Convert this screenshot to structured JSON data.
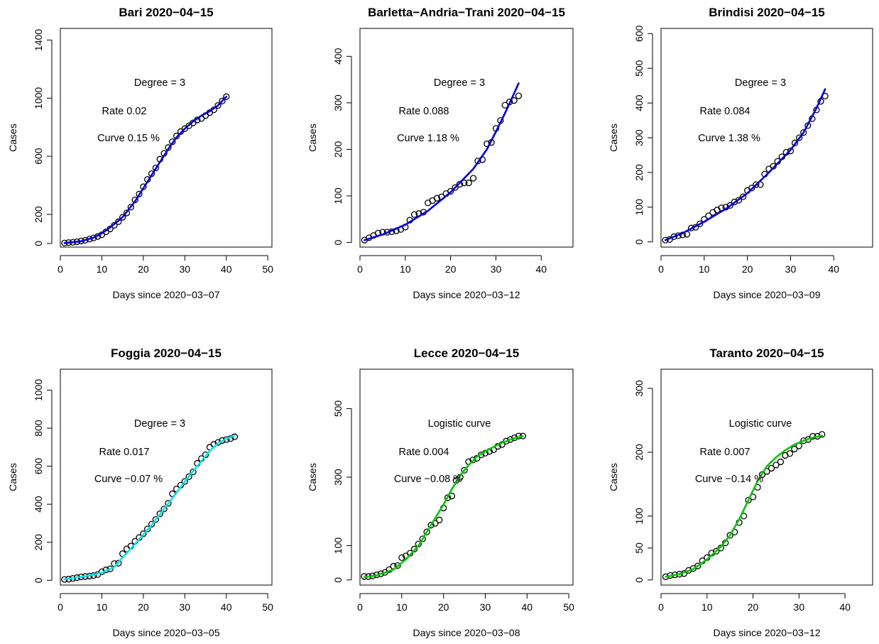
{
  "chart_data": [
    {
      "type": "scatter",
      "title": "Bari 2020−04−15",
      "xlabel": "Days since 2020−03−07",
      "ylabel": "Cases",
      "xlim": [
        0,
        51
      ],
      "ylim": [
        -25,
        1480
      ],
      "xticks": [
        0,
        10,
        20,
        30,
        40,
        50
      ],
      "yticks": [
        0,
        200,
        600,
        1000,
        1400
      ],
      "annotations": [
        "Degree = 3",
        "Rate 0.02",
        "Curve 0.15 %"
      ],
      "fit_color": "#0000ee",
      "points": [
        [
          1,
          3
        ],
        [
          2,
          6
        ],
        [
          3,
          8
        ],
        [
          4,
          12
        ],
        [
          5,
          17
        ],
        [
          6,
          22
        ],
        [
          7,
          30
        ],
        [
          8,
          38
        ],
        [
          9,
          48
        ],
        [
          10,
          60
        ],
        [
          11,
          80
        ],
        [
          12,
          100
        ],
        [
          13,
          125
        ],
        [
          14,
          150
        ],
        [
          15,
          180
        ],
        [
          16,
          210
        ],
        [
          17,
          250
        ],
        [
          18,
          300
        ],
        [
          19,
          340
        ],
        [
          20,
          390
        ],
        [
          21,
          440
        ],
        [
          22,
          480
        ],
        [
          23,
          520
        ],
        [
          24,
          580
        ],
        [
          25,
          620
        ],
        [
          26,
          660
        ],
        [
          27,
          700
        ],
        [
          28,
          740
        ],
        [
          29,
          770
        ],
        [
          30,
          790
        ],
        [
          31,
          810
        ],
        [
          32,
          830
        ],
        [
          33,
          850
        ],
        [
          34,
          860
        ],
        [
          35,
          880
        ],
        [
          36,
          900
        ],
        [
          37,
          920
        ],
        [
          38,
          950
        ],
        [
          39,
          980
        ],
        [
          40,
          1010
        ]
      ],
      "fit": [
        [
          1,
          3
        ],
        [
          5,
          15
        ],
        [
          8,
          40
        ],
        [
          10,
          70
        ],
        [
          12,
          110
        ],
        [
          15,
          180
        ],
        [
          18,
          290
        ],
        [
          20,
          380
        ],
        [
          22,
          470
        ],
        [
          24,
          560
        ],
        [
          26,
          650
        ],
        [
          28,
          730
        ],
        [
          30,
          790
        ],
        [
          32,
          840
        ],
        [
          34,
          880
        ],
        [
          36,
          910
        ],
        [
          38,
          950
        ],
        [
          40,
          1010
        ]
      ]
    },
    {
      "type": "scatter",
      "title": "Barletta−Andria−Trani 2020−04−15",
      "xlabel": "Days since 2020−03−12",
      "ylabel": "Cases",
      "xlim": [
        0,
        47
      ],
      "ylim": [
        -10,
        460
      ],
      "xticks": [
        0,
        10,
        20,
        30,
        40
      ],
      "yticks": [
        0,
        100,
        200,
        300,
        400
      ],
      "annotations": [
        "Degree = 3",
        "Rate 0.088",
        "Curve 1.18 %"
      ],
      "fit_color": "#0000ee",
      "points": [
        [
          1,
          5
        ],
        [
          2,
          10
        ],
        [
          3,
          15
        ],
        [
          4,
          20
        ],
        [
          5,
          22
        ],
        [
          6,
          22
        ],
        [
          7,
          23
        ],
        [
          8,
          25
        ],
        [
          9,
          28
        ],
        [
          10,
          33
        ],
        [
          11,
          48
        ],
        [
          12,
          60
        ],
        [
          13,
          62
        ],
        [
          14,
          65
        ],
        [
          15,
          85
        ],
        [
          16,
          90
        ],
        [
          17,
          95
        ],
        [
          18,
          98
        ],
        [
          19,
          105
        ],
        [
          20,
          110
        ],
        [
          21,
          118
        ],
        [
          22,
          125
        ],
        [
          23,
          128
        ],
        [
          24,
          128
        ],
        [
          25,
          138
        ],
        [
          26,
          175
        ],
        [
          27,
          178
        ],
        [
          28,
          212
        ],
        [
          29,
          215
        ],
        [
          30,
          245
        ],
        [
          31,
          262
        ],
        [
          32,
          295
        ],
        [
          33,
          302
        ],
        [
          34,
          305
        ],
        [
          35,
          315
        ]
      ],
      "fit": [
        [
          1,
          5
        ],
        [
          5,
          17
        ],
        [
          10,
          38
        ],
        [
          15,
          68
        ],
        [
          20,
          108
        ],
        [
          25,
          158
        ],
        [
          28,
          200
        ],
        [
          30,
          238
        ],
        [
          32,
          278
        ],
        [
          34,
          320
        ],
        [
          35,
          342
        ]
      ]
    },
    {
      "type": "scatter",
      "title": "Brindisi 2020−04−15",
      "xlabel": "Days since 2020−03−09",
      "ylabel": "Cases",
      "xlim": [
        0,
        49
      ],
      "ylim": [
        -15,
        615
      ],
      "xticks": [
        0,
        10,
        20,
        30,
        40
      ],
      "yticks": [
        0,
        100,
        200,
        300,
        400,
        500,
        600
      ],
      "annotations": [
        "Degree = 3",
        "Rate 0.084",
        "Curve 1.38 %"
      ],
      "fit_color": "#0000ee",
      "points": [
        [
          1,
          5
        ],
        [
          2,
          7
        ],
        [
          3,
          15
        ],
        [
          4,
          18
        ],
        [
          5,
          20
        ],
        [
          6,
          22
        ],
        [
          7,
          40
        ],
        [
          8,
          42
        ],
        [
          9,
          52
        ],
        [
          10,
          65
        ],
        [
          11,
          75
        ],
        [
          12,
          85
        ],
        [
          13,
          92
        ],
        [
          14,
          98
        ],
        [
          15,
          100
        ],
        [
          16,
          105
        ],
        [
          17,
          115
        ],
        [
          18,
          120
        ],
        [
          19,
          130
        ],
        [
          20,
          148
        ],
        [
          21,
          155
        ],
        [
          22,
          165
        ],
        [
          23,
          165
        ],
        [
          24,
          195
        ],
        [
          25,
          210
        ],
        [
          26,
          218
        ],
        [
          27,
          232
        ],
        [
          28,
          245
        ],
        [
          29,
          258
        ],
        [
          30,
          262
        ],
        [
          31,
          285
        ],
        [
          32,
          300
        ],
        [
          33,
          315
        ],
        [
          34,
          335
        ],
        [
          35,
          355
        ],
        [
          36,
          380
        ],
        [
          37,
          405
        ],
        [
          38,
          420
        ]
      ],
      "fit": [
        [
          1,
          5
        ],
        [
          5,
          25
        ],
        [
          10,
          58
        ],
        [
          15,
          95
        ],
        [
          20,
          140
        ],
        [
          25,
          200
        ],
        [
          30,
          265
        ],
        [
          33,
          315
        ],
        [
          36,
          385
        ],
        [
          38,
          440
        ]
      ]
    },
    {
      "type": "scatter",
      "title": "Foggia 2020−04−15",
      "xlabel": "Days since 2020−03−05",
      "ylabel": "Cases",
      "xlim": [
        0,
        51
      ],
      "ylim": [
        -25,
        1110
      ],
      "xticks": [
        0,
        10,
        20,
        30,
        40,
        50
      ],
      "yticks": [
        0,
        200,
        400,
        600,
        800,
        1000
      ],
      "annotations": [
        "Degree = 3",
        "Rate 0.017",
        "Curve −0.07 %"
      ],
      "fit_color": "#00e5ee",
      "points": [
        [
          1,
          5
        ],
        [
          2,
          6
        ],
        [
          3,
          10
        ],
        [
          4,
          14
        ],
        [
          5,
          18
        ],
        [
          6,
          20
        ],
        [
          7,
          22
        ],
        [
          8,
          25
        ],
        [
          9,
          30
        ],
        [
          10,
          45
        ],
        [
          11,
          55
        ],
        [
          12,
          60
        ],
        [
          13,
          88
        ],
        [
          14,
          90
        ],
        [
          15,
          140
        ],
        [
          16,
          165
        ],
        [
          17,
          180
        ],
        [
          18,
          205
        ],
        [
          19,
          225
        ],
        [
          20,
          245
        ],
        [
          21,
          270
        ],
        [
          22,
          295
        ],
        [
          23,
          320
        ],
        [
          24,
          350
        ],
        [
          25,
          375
        ],
        [
          26,
          405
        ],
        [
          27,
          455
        ],
        [
          28,
          480
        ],
        [
          29,
          500
        ],
        [
          30,
          520
        ],
        [
          31,
          545
        ],
        [
          32,
          570
        ],
        [
          33,
          615
        ],
        [
          34,
          640
        ],
        [
          35,
          660
        ],
        [
          36,
          700
        ],
        [
          37,
          715
        ],
        [
          38,
          725
        ],
        [
          39,
          735
        ],
        [
          40,
          740
        ],
        [
          41,
          745
        ],
        [
          42,
          755
        ]
      ],
      "fit": [
        [
          1,
          5
        ],
        [
          5,
          18
        ],
        [
          10,
          40
        ],
        [
          13,
          70
        ],
        [
          15,
          120
        ],
        [
          18,
          190
        ],
        [
          20,
          240
        ],
        [
          22,
          290
        ],
        [
          25,
          375
        ],
        [
          28,
          460
        ],
        [
          30,
          520
        ],
        [
          33,
          600
        ],
        [
          36,
          680
        ],
        [
          38,
          720
        ],
        [
          40,
          745
        ],
        [
          42,
          760
        ]
      ]
    },
    {
      "type": "scatter",
      "title": "Lecce 2020−04−15",
      "xlabel": "Days since 2020−03−08",
      "ylabel": "Cases",
      "xlim": [
        0,
        51
      ],
      "ylim": [
        -15,
        615
      ],
      "xticks": [
        0,
        10,
        20,
        30,
        40,
        50
      ],
      "yticks": [
        0,
        100,
        300,
        500
      ],
      "annotations": [
        "Logistic curve",
        "Rate 0.004",
        "Curve −0.08 %"
      ],
      "fit_color": "#00cc00",
      "points": [
        [
          1,
          10
        ],
        [
          2,
          10
        ],
        [
          3,
          12
        ],
        [
          4,
          15
        ],
        [
          5,
          18
        ],
        [
          6,
          22
        ],
        [
          7,
          30
        ],
        [
          8,
          40
        ],
        [
          9,
          42
        ],
        [
          10,
          65
        ],
        [
          11,
          70
        ],
        [
          12,
          78
        ],
        [
          13,
          90
        ],
        [
          14,
          105
        ],
        [
          15,
          120
        ],
        [
          16,
          140
        ],
        [
          17,
          160
        ],
        [
          18,
          165
        ],
        [
          19,
          175
        ],
        [
          20,
          210
        ],
        [
          21,
          240
        ],
        [
          22,
          245
        ],
        [
          23,
          290
        ],
        [
          24,
          300
        ],
        [
          25,
          320
        ],
        [
          26,
          345
        ],
        [
          27,
          350
        ],
        [
          28,
          355
        ],
        [
          29,
          365
        ],
        [
          30,
          370
        ],
        [
          31,
          375
        ],
        [
          32,
          380
        ],
        [
          33,
          390
        ],
        [
          34,
          395
        ],
        [
          35,
          405
        ],
        [
          36,
          410
        ],
        [
          37,
          415
        ],
        [
          38,
          420
        ],
        [
          39,
          420
        ]
      ],
      "fit": [
        [
          1,
          8
        ],
        [
          4,
          13
        ],
        [
          8,
          30
        ],
        [
          11,
          60
        ],
        [
          14,
          100
        ],
        [
          16,
          140
        ],
        [
          18,
          180
        ],
        [
          20,
          220
        ],
        [
          22,
          265
        ],
        [
          24,
          305
        ],
        [
          26,
          335
        ],
        [
          28,
          360
        ],
        [
          30,
          375
        ],
        [
          33,
          395
        ],
        [
          36,
          410
        ],
        [
          39,
          420
        ]
      ]
    },
    {
      "type": "scatter",
      "title": "Taranto 2020−04−15",
      "xlabel": "Days since 2020−03−12",
      "ylabel": "Cases",
      "xlim": [
        0,
        46
      ],
      "ylim": [
        -8,
        330
      ],
      "xticks": [
        0,
        10,
        20,
        30,
        40
      ],
      "yticks": [
        0,
        50,
        100,
        200,
        300
      ],
      "annotations": [
        "Logistic curve",
        "Rate 0.007",
        "Curve −0.14 %"
      ],
      "fit_color": "#00cc00",
      "points": [
        [
          1,
          5
        ],
        [
          2,
          7
        ],
        [
          3,
          8
        ],
        [
          4,
          9
        ],
        [
          5,
          10
        ],
        [
          6,
          15
        ],
        [
          7,
          18
        ],
        [
          8,
          22
        ],
        [
          9,
          30
        ],
        [
          10,
          35
        ],
        [
          11,
          42
        ],
        [
          12,
          45
        ],
        [
          13,
          50
        ],
        [
          14,
          58
        ],
        [
          15,
          70
        ],
        [
          16,
          75
        ],
        [
          17,
          90
        ],
        [
          18,
          100
        ],
        [
          19,
          125
        ],
        [
          20,
          130
        ],
        [
          21,
          145
        ],
        [
          22,
          165
        ],
        [
          23,
          170
        ],
        [
          24,
          175
        ],
        [
          25,
          180
        ],
        [
          26,
          185
        ],
        [
          27,
          195
        ],
        [
          28,
          198
        ],
        [
          29,
          205
        ],
        [
          30,
          210
        ],
        [
          31,
          218
        ],
        [
          32,
          220
        ],
        [
          33,
          225
        ],
        [
          34,
          225
        ],
        [
          35,
          228
        ]
      ],
      "fit": [
        [
          1,
          5
        ],
        [
          4,
          9
        ],
        [
          7,
          17
        ],
        [
          10,
          32
        ],
        [
          13,
          52
        ],
        [
          15,
          70
        ],
        [
          17,
          95
        ],
        [
          19,
          125
        ],
        [
          21,
          155
        ],
        [
          23,
          178
        ],
        [
          25,
          192
        ],
        [
          27,
          203
        ],
        [
          29,
          212
        ],
        [
          31,
          218
        ],
        [
          33,
          223
        ],
        [
          35,
          226
        ]
      ]
    }
  ]
}
